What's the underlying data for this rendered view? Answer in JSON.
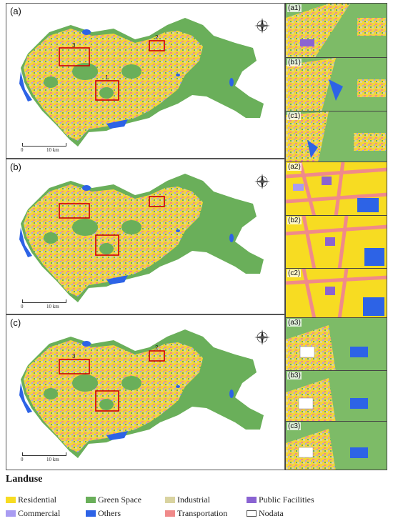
{
  "panels": [
    {
      "label": "(a)",
      "scale_start": "0",
      "scale_end": "10 km",
      "box_labels": [
        "1",
        "2",
        "3"
      ]
    },
    {
      "label": "(b)",
      "scale_start": "0",
      "scale_end": "10 km",
      "box_labels": [
        "1",
        "2",
        "3"
      ]
    },
    {
      "label": "(c)",
      "scale_start": "0",
      "scale_end": "10 km",
      "box_labels": [
        "1",
        "2",
        "3"
      ]
    }
  ],
  "compass": {
    "n": "N",
    "s": "S",
    "e": "E",
    "w": "W"
  },
  "insets": [
    "(a1)",
    "(b1)",
    "(c1)",
    "(a2)",
    "(b2)",
    "(c2)",
    "(a3)",
    "(b3)",
    "(c3)"
  ],
  "legend": {
    "title": "Landuse",
    "items": [
      {
        "label": "Residential",
        "color": "#f7dc22"
      },
      {
        "label": "Green Space",
        "color": "#6aaf5a"
      },
      {
        "label": "Industrial",
        "color": "#d9d3a0"
      },
      {
        "label": "Public Facilities",
        "color": "#8a63d2"
      },
      {
        "label": "Commercial",
        "color": "#a99cf2"
      },
      {
        "label": "Others",
        "color": "#2d63e6"
      },
      {
        "label": "Transportation",
        "color": "#f08a8a"
      },
      {
        "label": "Nodata",
        "color": "#ffffff"
      }
    ]
  },
  "highlight_color": "#cc0000"
}
